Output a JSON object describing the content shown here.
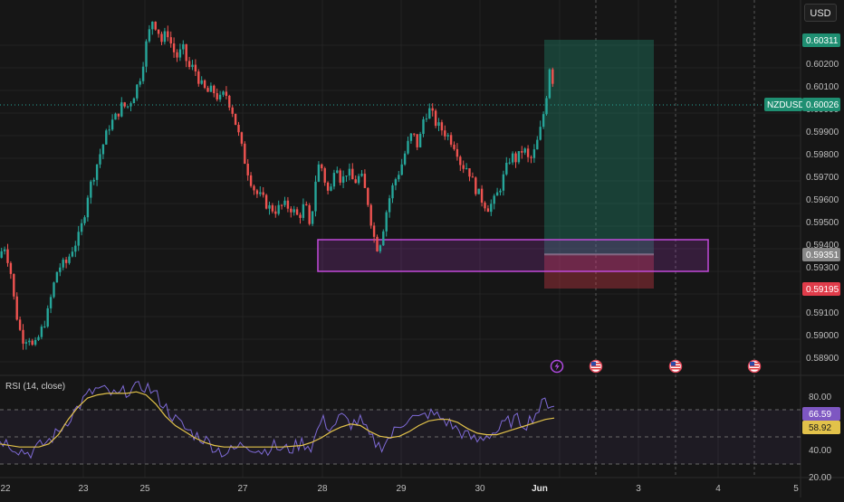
{
  "header": {
    "currency": "USD"
  },
  "price_axis": {
    "ticks": [
      "0.60200",
      "0.60100",
      "0.60000",
      "0.59900",
      "0.59800",
      "0.59700",
      "0.59600",
      "0.59500",
      "0.59400",
      "0.59300",
      "0.59100",
      "0.59000",
      "0.58900"
    ],
    "tp_label": "0.60311",
    "current_label": "0.60026",
    "symbol_label": "NZDUSD",
    "entry_label": "0.59351",
    "sl_label": "0.59195"
  },
  "time_axis": {
    "labels": [
      "22",
      "23",
      "25",
      "27",
      "28",
      "29",
      "30",
      "Jun",
      "3",
      "4",
      "5"
    ]
  },
  "rsi": {
    "title": "RSI (14, close)",
    "ticks": [
      "80.00",
      "40.00",
      "20.00"
    ],
    "rsi_value": "66.59",
    "ma_value": "58.92"
  },
  "events": [
    {
      "icon": "lightning-icon"
    },
    {
      "icon": "us-flag-icon"
    },
    {
      "icon": "us-flag-icon"
    },
    {
      "icon": "us-flag-icon"
    }
  ],
  "colors": {
    "background": "#161616",
    "up": "#26a69a",
    "down": "#ef5350",
    "zone": "#b23ccf",
    "rsi_line": "#7e6ad6",
    "rsi_ma": "#e2c24a",
    "tp": "#1f8f72",
    "sl": "#e03c4a",
    "entry": "#888888"
  },
  "chart_data": {
    "type": "candlestick",
    "symbol": "NZDUSD",
    "price_range": [
      0.5885,
      0.6035
    ],
    "price_path": [
      [
        0,
        0.5932
      ],
      [
        0.6,
        0.5937
      ],
      [
        1.2,
        0.5928
      ],
      [
        1.7,
        0.5912
      ],
      [
        2.2,
        0.5903
      ],
      [
        2.6,
        0.5899
      ],
      [
        3.1,
        0.5901
      ],
      [
        3.6,
        0.5895
      ],
      [
        4.2,
        0.5901
      ],
      [
        5.0,
        0.5909
      ],
      [
        5.6,
        0.592
      ],
      [
        6.1,
        0.5928
      ],
      [
        7.0,
        0.593
      ],
      [
        7.5,
        0.5935
      ],
      [
        8.2,
        0.594
      ],
      [
        8.7,
        0.5947
      ],
      [
        9.2,
        0.5958
      ],
      [
        9.7,
        0.5964
      ],
      [
        10.3,
        0.5972
      ],
      [
        10.8,
        0.5978
      ],
      [
        11.4,
        0.5985
      ],
      [
        12.0,
        0.5988
      ],
      [
        12.7,
        0.5993
      ],
      [
        13.2,
        0.5992
      ],
      [
        14.0,
        0.5998
      ],
      [
        14.6,
        0.6005
      ],
      [
        15.2,
        0.6018
      ],
      [
        15.8,
        0.6027
      ],
      [
        16.3,
        0.6024
      ],
      [
        16.8,
        0.6018
      ],
      [
        17.3,
        0.6023
      ],
      [
        17.9,
        0.6015
      ],
      [
        18.4,
        0.6012
      ],
      [
        18.9,
        0.6016
      ],
      [
        19.5,
        0.6008
      ],
      [
        20.1,
        0.6008
      ],
      [
        20.8,
        0.6001
      ],
      [
        21.4,
        0.5998
      ],
      [
        22.0,
        0.5999
      ],
      [
        22.7,
        0.5995
      ],
      [
        23.3,
        0.5998
      ],
      [
        24.0,
        0.5991
      ],
      [
        24.6,
        0.5982
      ],
      [
        25.2,
        0.5972
      ],
      [
        25.8,
        0.5964
      ],
      [
        26.4,
        0.5958
      ],
      [
        27.0,
        0.5956
      ],
      [
        27.8,
        0.5952
      ],
      [
        28.5,
        0.5951
      ],
      [
        29.2,
        0.5953
      ],
      [
        30.0,
        0.5952
      ],
      [
        30.8,
        0.5948
      ],
      [
        31.5,
        0.5954
      ],
      [
        32.0,
        0.5942
      ],
      [
        32.5,
        0.5962
      ],
      [
        33.0,
        0.5971
      ],
      [
        33.5,
        0.5963
      ],
      [
        34.0,
        0.5956
      ],
      [
        34.6,
        0.5972
      ],
      [
        35.2,
        0.5962
      ],
      [
        35.8,
        0.5967
      ],
      [
        36.5,
        0.5962
      ],
      [
        37.2,
        0.5965
      ],
      [
        37.9,
        0.5955
      ],
      [
        38.5,
        0.5941
      ],
      [
        39.0,
        0.5935
      ],
      [
        39.5,
        0.5944
      ],
      [
        40.0,
        0.5954
      ],
      [
        40.6,
        0.5962
      ],
      [
        41.3,
        0.5968
      ],
      [
        41.9,
        0.5976
      ],
      [
        42.5,
        0.5982
      ],
      [
        43.1,
        0.5976
      ],
      [
        43.7,
        0.5989
      ],
      [
        44.3,
        0.5991
      ],
      [
        45.0,
        0.5985
      ],
      [
        45.6,
        0.5983
      ],
      [
        46.3,
        0.598
      ],
      [
        47.0,
        0.5976
      ],
      [
        47.5,
        0.5969
      ],
      [
        48.2,
        0.5968
      ],
      [
        48.8,
        0.5961
      ],
      [
        49.5,
        0.5956
      ],
      [
        50.2,
        0.5952
      ],
      [
        50.8,
        0.5954
      ],
      [
        51.4,
        0.5959
      ],
      [
        52.0,
        0.5966
      ],
      [
        52.6,
        0.5973
      ],
      [
        53.2,
        0.5971
      ],
      [
        53.9,
        0.5976
      ],
      [
        54.5,
        0.597
      ],
      [
        55.1,
        0.5975
      ],
      [
        55.7,
        0.5984
      ],
      [
        56.2,
        0.5995
      ],
      [
        56.6,
        0.6009
      ],
      [
        56.9,
        0.6003
      ]
    ],
    "boxes": {
      "zone": [
        0.593,
        0.5941
      ],
      "tp": 0.60311,
      "entry": 0.59351,
      "sl": 0.59195
    },
    "rsi": {
      "range": [
        20,
        85
      ],
      "levels": [
        70,
        50,
        30
      ],
      "rsi_path": [
        [
          0,
          45
        ],
        [
          1,
          42
        ],
        [
          2,
          38
        ],
        [
          3,
          36
        ],
        [
          4,
          40
        ],
        [
          5,
          44
        ],
        [
          6,
          50
        ],
        [
          7,
          58
        ],
        [
          8,
          66
        ],
        [
          9,
          74
        ],
        [
          10,
          78
        ],
        [
          11,
          76
        ],
        [
          12,
          73
        ],
        [
          13,
          77
        ],
        [
          14,
          78
        ],
        [
          15,
          80
        ],
        [
          16,
          74
        ],
        [
          17,
          66
        ],
        [
          18,
          58
        ],
        [
          19,
          52
        ],
        [
          20,
          48
        ],
        [
          21,
          45
        ],
        [
          22,
          40
        ],
        [
          23,
          36
        ],
        [
          24,
          38
        ],
        [
          25,
          42
        ],
        [
          26,
          40
        ],
        [
          27,
          37
        ],
        [
          28,
          41
        ],
        [
          29,
          38
        ],
        [
          30,
          39
        ],
        [
          31,
          43
        ],
        [
          32,
          40
        ],
        [
          33,
          58
        ],
        [
          34,
          52
        ],
        [
          35,
          60
        ],
        [
          36,
          55
        ],
        [
          37,
          57
        ],
        [
          38,
          46
        ],
        [
          39,
          40
        ],
        [
          40,
          46
        ],
        [
          41,
          54
        ],
        [
          42,
          60
        ],
        [
          43,
          58
        ],
        [
          44,
          62
        ],
        [
          45,
          60
        ],
        [
          46,
          56
        ],
        [
          47,
          51
        ],
        [
          48,
          47
        ],
        [
          49,
          44
        ],
        [
          50,
          48
        ],
        [
          51,
          50
        ],
        [
          52,
          56
        ],
        [
          53,
          58
        ],
        [
          54,
          55
        ],
        [
          55,
          62
        ],
        [
          56,
          70
        ],
        [
          56.9,
          66.6
        ]
      ],
      "ma_path": [
        [
          0,
          42
        ],
        [
          2,
          40
        ],
        [
          4,
          40
        ],
        [
          5,
          42
        ],
        [
          6,
          48
        ],
        [
          7,
          58
        ],
        [
          8,
          66
        ],
        [
          9,
          72
        ],
        [
          10,
          74
        ],
        [
          11,
          75
        ],
        [
          12,
          75
        ],
        [
          13,
          75
        ],
        [
          14,
          76
        ],
        [
          15,
          74
        ],
        [
          16,
          68
        ],
        [
          17,
          60
        ],
        [
          18,
          54
        ],
        [
          19,
          50
        ],
        [
          20,
          46
        ],
        [
          21,
          43
        ],
        [
          22,
          41
        ],
        [
          23,
          40
        ],
        [
          25,
          40
        ],
        [
          27,
          40
        ],
        [
          29,
          40
        ],
        [
          31,
          41
        ],
        [
          32,
          43
        ],
        [
          33,
          46
        ],
        [
          34,
          50
        ],
        [
          35,
          53
        ],
        [
          36,
          55
        ],
        [
          37,
          54
        ],
        [
          38,
          50
        ],
        [
          39,
          47
        ],
        [
          40,
          46
        ],
        [
          41,
          47
        ],
        [
          42,
          50
        ],
        [
          43,
          54
        ],
        [
          44,
          57
        ],
        [
          45,
          58
        ],
        [
          46,
          58
        ],
        [
          47,
          56
        ],
        [
          48,
          52
        ],
        [
          49,
          49
        ],
        [
          50,
          48
        ],
        [
          51,
          48
        ],
        [
          52,
          50
        ],
        [
          53,
          52
        ],
        [
          54,
          54
        ],
        [
          55,
          56
        ],
        [
          56,
          58
        ],
        [
          56.9,
          58.9
        ]
      ]
    }
  }
}
